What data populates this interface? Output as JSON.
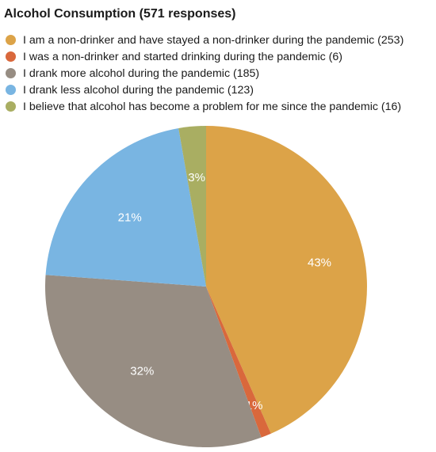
{
  "chart_data": {
    "type": "pie",
    "title": "Alcohol Consumption (571 responses)",
    "slices": [
      {
        "legend": "I am a non-drinker and have stayed a non-drinker during the pandemic (253)",
        "value": 253,
        "label": "43%",
        "color": "#DCA348"
      },
      {
        "legend": "I was a non-drinker and started drinking during the pandemic (6)",
        "value": 6,
        "label": "1%",
        "color": "#D9683C"
      },
      {
        "legend": "I drank more alcohol during the pandemic (185)",
        "value": 185,
        "label": "32%",
        "color": "#978D83"
      },
      {
        "legend": "I drank less alcohol during the pandemic (123)",
        "value": 123,
        "label": "21%",
        "color": "#79B5E2"
      },
      {
        "legend": "I believe that alcohol has become a problem for me since the pandemic (16)",
        "value": 16,
        "label": "3%",
        "color": "#A9AE62"
      }
    ],
    "legend_position": "top",
    "start": "12 o'clock, clockwise"
  }
}
